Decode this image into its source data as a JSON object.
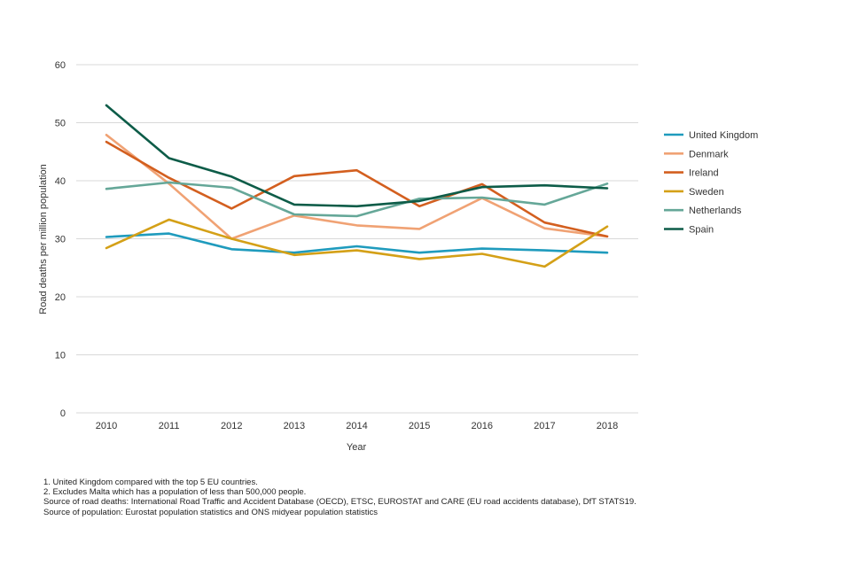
{
  "chart_data": {
    "type": "line",
    "xlabel": "Year",
    "ylabel": "Road deaths per million population",
    "ylim": [
      0,
      60
    ],
    "yticks": [
      0,
      10,
      20,
      30,
      40,
      50,
      60
    ],
    "x": [
      "2010",
      "2011",
      "2012",
      "2013",
      "2014",
      "2015",
      "2016",
      "2017",
      "2018"
    ],
    "grid": true,
    "legend_position": "right",
    "series": [
      {
        "name": "United Kingdom",
        "color": "#1f9bbd",
        "values": [
          30.3,
          30.9,
          28.2,
          27.6,
          28.7,
          27.6,
          28.3,
          28.0,
          27.6
        ]
      },
      {
        "name": "Denmark",
        "color": "#f0a274",
        "values": [
          47.9,
          39.5,
          30.0,
          34.0,
          32.3,
          31.7,
          37.0,
          31.8,
          30.4
        ]
      },
      {
        "name": "Ireland",
        "color": "#d35f1f",
        "values": [
          46.7,
          40.5,
          35.2,
          40.8,
          41.8,
          35.6,
          39.4,
          32.8,
          30.4
        ]
      },
      {
        "name": "Sweden",
        "color": "#d4a017",
        "values": [
          28.4,
          33.3,
          30.0,
          27.2,
          28.0,
          26.5,
          27.4,
          25.2,
          32.1
        ]
      },
      {
        "name": "Netherlands",
        "color": "#65a798",
        "values": [
          38.6,
          39.7,
          38.8,
          34.2,
          33.9,
          36.9,
          37.1,
          35.9,
          39.5
        ]
      },
      {
        "name": "Spain",
        "color": "#0d5c48",
        "values": [
          53.0,
          43.9,
          40.7,
          35.9,
          35.6,
          36.5,
          38.9,
          39.2,
          38.7
        ]
      }
    ]
  },
  "notes": [
    "1. United Kingdom compared with the top 5 EU countries.",
    "2. Excludes Malta which has a population of less than 500,000 people.",
    "Source of road deaths: International Road Traffic and Accident Database (OECD), ETSC, EUROSTAT and CARE (EU road accidents database), DfT STATS19.",
    "Source of population: Eurostat population statistics and ONS midyear population statistics"
  ]
}
